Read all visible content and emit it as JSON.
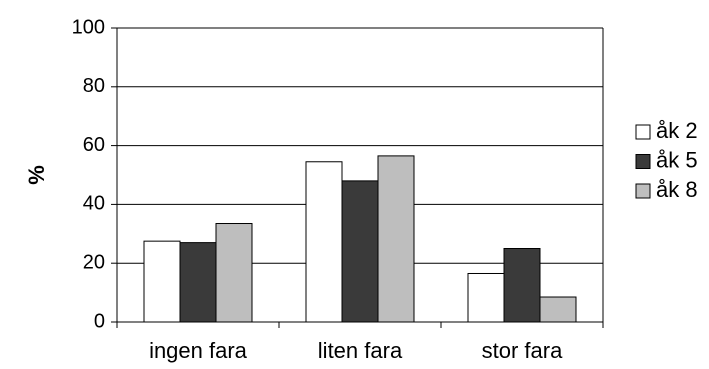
{
  "chart_data": {
    "type": "bar",
    "title": "",
    "xlabel": "",
    "ylabel": "%",
    "ylim": [
      0,
      100
    ],
    "yticks": [
      "0",
      "20",
      "40",
      "60",
      "80",
      "100"
    ],
    "grid": true,
    "legend_position": "right",
    "categories": [
      "ingen fara",
      "liten fara",
      "stor fara"
    ],
    "series": [
      {
        "name": "åk 2",
        "color": "#ffffff",
        "values": [
          27.5,
          54.5,
          16.5
        ]
      },
      {
        "name": "åk 5",
        "color": "#3a3a3a",
        "values": [
          27,
          48,
          25
        ]
      },
      {
        "name": "åk 8",
        "color": "#bebebe",
        "values": [
          33.5,
          56.5,
          8.5
        ]
      }
    ]
  }
}
